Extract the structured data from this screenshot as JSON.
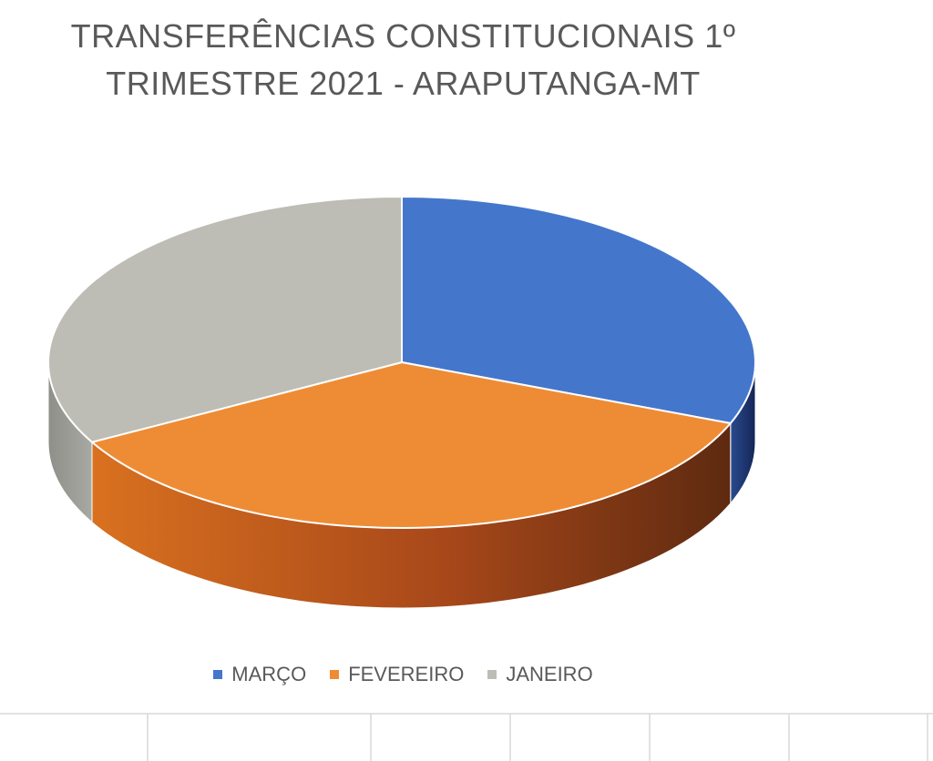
{
  "chart_data": {
    "type": "pie",
    "title_lines": [
      "TRANSFERÊNCIAS CONSTITUCIONAIS 1º",
      "TRIMESTRE 2021 - ARAPUTANGA-MT"
    ],
    "categories": [
      "MARÇO",
      "FEVEREIRO",
      "JANEIRO"
    ],
    "values": [
      31,
      36,
      33
    ],
    "colors": [
      "#4477CC",
      "#EE8C35",
      "#BDBDB5"
    ],
    "side_colors": [
      "#1F3770",
      "#8A3E12",
      "#8E8E88"
    ],
    "style": "3d",
    "legend_position": "bottom"
  }
}
